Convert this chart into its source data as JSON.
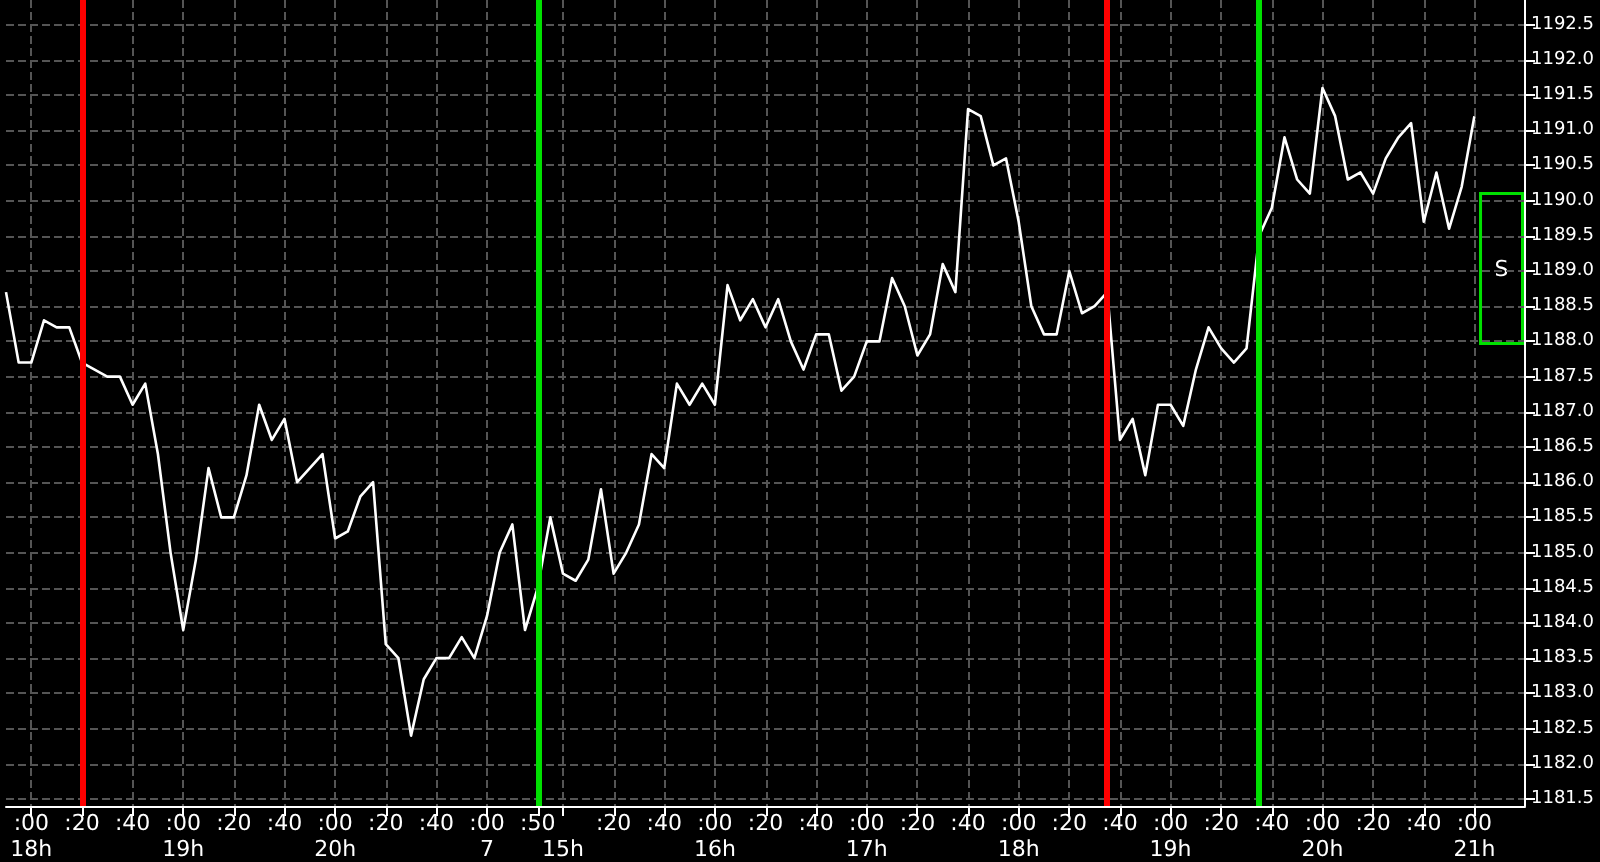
{
  "chart_data": {
    "type": "line",
    "categories": [
      null,
      null,
      ":00\n18h",
      null,
      null,
      null,
      ":20",
      null,
      null,
      null,
      ":40",
      null,
      null,
      null,
      ":00\n19h",
      null,
      null,
      null,
      ":20",
      null,
      null,
      null,
      ":40",
      null,
      null,
      null,
      ":00\n20h",
      null,
      null,
      null,
      ":20",
      null,
      null,
      null,
      ":40",
      null,
      null,
      null,
      ":00\n7",
      null,
      null,
      null,
      ":50",
      null,
      "\n15h",
      null,
      null,
      null,
      ":20",
      null,
      null,
      null,
      ":40",
      null,
      null,
      null,
      ":00\n16h",
      null,
      null,
      null,
      ":20",
      null,
      null,
      null,
      ":40",
      null,
      null,
      null,
      ":00\n17h",
      null,
      null,
      null,
      ":20",
      null,
      null,
      null,
      ":40",
      null,
      null,
      null,
      ":00\n18h",
      null,
      null,
      null,
      ":20",
      null,
      null,
      null,
      ":40",
      null,
      null,
      null,
      ":00\n19h",
      null,
      null,
      null,
      ":20",
      null,
      null,
      null,
      ":40",
      null,
      null,
      null,
      ":00\n20h",
      null,
      null,
      null,
      ":20",
      null,
      null,
      null,
      ":40",
      null,
      null,
      null,
      ":00\n21h",
      null,
      null,
      null,
      null
    ],
    "series": [
      {
        "color": "#ffffff",
        "values": [
          1188.7,
          1187.7,
          1187.7,
          1188.3,
          1188.2,
          1188.2,
          1187.7,
          1187.6,
          1187.5,
          1187.5,
          1187.1,
          1187.4,
          1186.4,
          1185.0,
          1183.9,
          1184.9,
          1186.2,
          1185.5,
          1185.5,
          1186.1,
          1187.1,
          1186.6,
          1186.9,
          1186.0,
          1186.2,
          1186.4,
          1185.2,
          1185.3,
          1185.8,
          1186.0,
          1183.7,
          1183.5,
          1182.4,
          1183.2,
          1183.5,
          1183.5,
          1183.8,
          1183.5,
          1184.1,
          1185.0,
          1185.4,
          1183.9,
          1184.5,
          1185.5,
          1184.7,
          1184.6,
          1184.9,
          1185.9,
          1184.7,
          1185.0,
          1185.4,
          1186.4,
          1186.2,
          1187.4,
          1187.1,
          1187.4,
          1187.1,
          1188.8,
          1188.3,
          1188.6,
          1188.2,
          1188.6,
          1188.0,
          1187.6,
          1188.1,
          1188.1,
          1187.3,
          1187.5,
          1188.0,
          1188.0,
          1188.9,
          1188.5,
          1187.8,
          1188.1,
          1189.1,
          1188.7,
          1191.3,
          1191.2,
          1190.5,
          1190.6,
          1189.7,
          1188.5,
          1188.1,
          1188.1,
          1189.0,
          1188.4,
          1188.5,
          1188.7,
          1186.6,
          1186.9,
          1186.1,
          1187.1,
          1187.1,
          1186.8,
          1187.6,
          1188.2,
          1187.9,
          1187.7,
          1187.9,
          1189.5,
          1189.9,
          1190.9,
          1190.3,
          1190.1,
          1191.6,
          1191.2,
          1190.3,
          1190.4,
          1190.1,
          1190.6,
          1190.9,
          1191.1,
          1189.7,
          1190.4,
          1189.6,
          1190.2,
          1191.2,
          null,
          null,
          null,
          null
        ]
      }
    ],
    "ylim": [
      1181.4,
      1192.85
    ],
    "yticks": [
      1181.5,
      {
        "value": 1182,
        "label": "1182.0"
      },
      1182.5,
      {
        "value": 1183,
        "label": "1183.0"
      },
      1183.5,
      {
        "value": 1184,
        "label": "1184.0"
      },
      1184.5,
      {
        "value": 1185,
        "label": "1185.0"
      },
      1185.5,
      {
        "value": 1186,
        "label": "1186.0"
      },
      1186.5,
      {
        "value": 1187,
        "label": "1187.0"
      },
      1187.5,
      {
        "value": 1188,
        "label": "1188.0"
      },
      1188.5,
      {
        "value": 1189,
        "label": "1189.0"
      },
      1189.5,
      {
        "value": 1190,
        "label": "1190.0"
      },
      1190.5,
      {
        "value": 1191,
        "label": "1191.0"
      },
      1191.5,
      {
        "value": 1192,
        "label": "1192.0"
      },
      1192.5
    ],
    "grid": true,
    "annotations": [
      "S"
    ]
  }
}
